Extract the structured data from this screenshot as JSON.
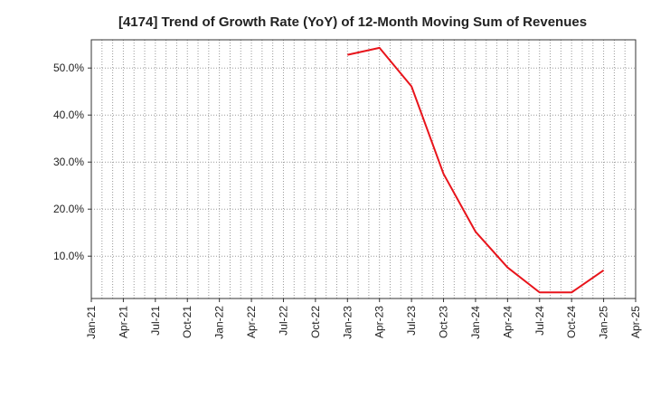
{
  "chart_data": {
    "type": "line",
    "title": "[4174]  Trend of Growth Rate (YoY) of 12-Month Moving Sum of Revenues",
    "xlabel": "",
    "ylabel": "",
    "x_ticks": [
      "Jan-21",
      "Apr-21",
      "Jul-21",
      "Oct-21",
      "Jan-22",
      "Apr-22",
      "Jul-22",
      "Oct-22",
      "Jan-23",
      "Apr-23",
      "Jul-23",
      "Oct-23",
      "Jan-24",
      "Apr-24",
      "Jul-24",
      "Oct-24",
      "Jan-25",
      "Apr-25"
    ],
    "y_ticks": [
      "10.0%",
      "20.0%",
      "30.0%",
      "40.0%",
      "50.0%"
    ],
    "y_tick_values": [
      10,
      20,
      30,
      40,
      50
    ],
    "xlim": [
      "Jan-21",
      "Apr-25"
    ],
    "ylim": [
      1,
      56
    ],
    "grid": "dotted",
    "series": [
      {
        "color": "#e8141b",
        "x": [
          "Jan-23",
          "Apr-23",
          "Jul-23",
          "Oct-23",
          "Jan-24",
          "Apr-24",
          "Jul-24",
          "Oct-24",
          "Jan-25"
        ],
        "values": [
          52.8,
          54.3,
          46.1,
          27.5,
          15.2,
          7.6,
          2.3,
          2.3,
          7.0
        ]
      }
    ]
  }
}
